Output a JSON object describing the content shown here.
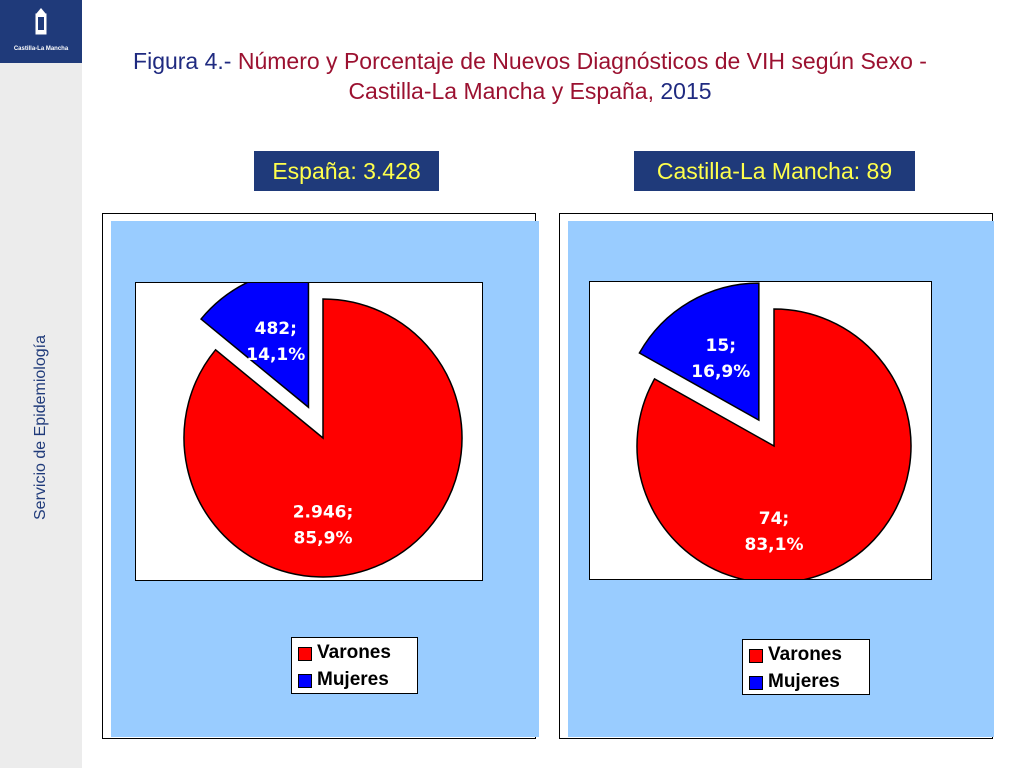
{
  "sidebar": {
    "logo_text": "Castilla-La Mancha",
    "vertical_label": "Servicio de Epidemiología"
  },
  "title": {
    "prefix": "Figura 4.-",
    "main": " Número y Porcentaje de Nuevos Diagnósticos de VIH según Sexo - Castilla-La Mancha y España, ",
    "year": "2015"
  },
  "colors": {
    "varones": "#ff0000",
    "mujeres": "#0000ff",
    "panel_bg": "#99ccff",
    "header_bg": "#1f3a7a",
    "header_text": "#ffff4c"
  },
  "chart_data": [
    {
      "type": "pie",
      "title": "España: 3.428",
      "legend": [
        "Varones",
        "Mujeres"
      ],
      "slices": [
        {
          "label": "Varones",
          "value": 2946,
          "percent": 85.9,
          "text": "2.946;",
          "pct_text": "85,9%"
        },
        {
          "label": "Mujeres",
          "value": 482,
          "percent": 14.1,
          "text": "482;",
          "pct_text": "14,1%"
        }
      ]
    },
    {
      "type": "pie",
      "title": "Castilla-La Mancha: 89",
      "legend": [
        "Varones",
        "Mujeres"
      ],
      "slices": [
        {
          "label": "Varones",
          "value": 74,
          "percent": 83.1,
          "text": "74;",
          "pct_text": "83,1%"
        },
        {
          "label": "Mujeres",
          "value": 15,
          "percent": 16.9,
          "text": "15;",
          "pct_text": "16,9%"
        }
      ]
    }
  ]
}
